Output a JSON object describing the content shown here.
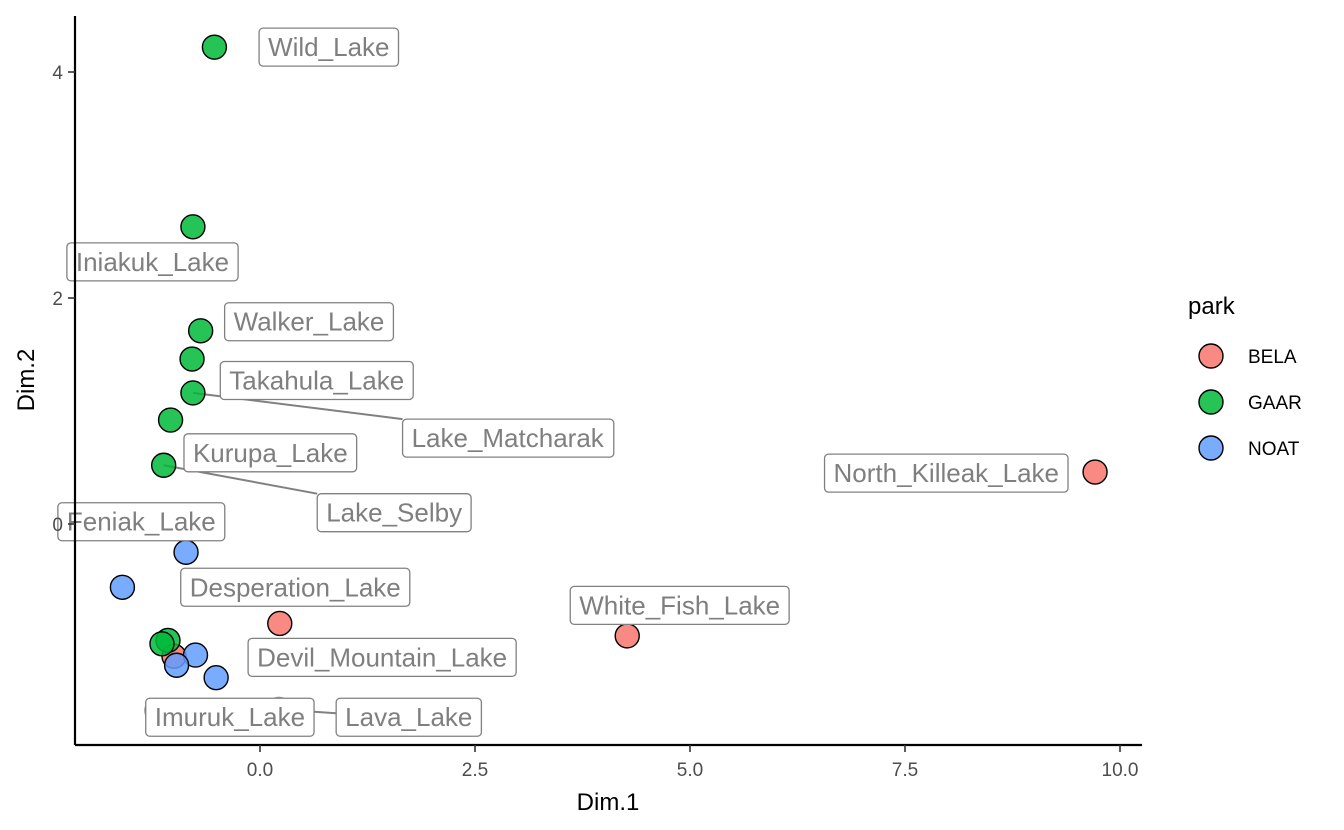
{
  "chart_data": {
    "type": "scatter",
    "title": "",
    "xlabel": "Dim.1",
    "ylabel": "Dim.2",
    "xlim": [
      -2.15,
      10.35
    ],
    "ylim": [
      -1.95,
      4.5
    ],
    "x_ticks": [
      0.0,
      2.5,
      5.0,
      7.5,
      10.0
    ],
    "x_tick_labels": [
      "0.0",
      "2.5",
      "5.0",
      "7.5",
      "10.0"
    ],
    "y_ticks": [
      0,
      2,
      4
    ],
    "y_tick_labels": [
      "0",
      "2",
      "4"
    ],
    "grid": false,
    "legend": {
      "title": "park",
      "position": "right",
      "entries": [
        {
          "name": "BELA",
          "color": "#F8766D"
        },
        {
          "name": "GAAR",
          "color": "#00BA38"
        },
        {
          "name": "NOAT",
          "color": "#619CFF"
        }
      ]
    },
    "points": [
      {
        "label": "Wild_Lake",
        "park": "GAAR",
        "x": -0.53,
        "y": 4.22
      },
      {
        "label": "",
        "park": "GAAR",
        "x": -0.78,
        "y": 2.63
      },
      {
        "label": "Walker_Lake",
        "park": "GAAR",
        "x": -0.69,
        "y": 1.71
      },
      {
        "label": "",
        "park": "GAAR",
        "x": -0.79,
        "y": 1.46
      },
      {
        "label": "Takahula_Lake",
        "park": "GAAR",
        "x": -0.78,
        "y": 1.16
      },
      {
        "label": "",
        "park": "GAAR",
        "x": -1.04,
        "y": 0.92
      },
      {
        "label": "",
        "park": "GAAR",
        "x": -1.12,
        "y": 0.52
      },
      {
        "label": "",
        "park": "BELA",
        "x": 9.71,
        "y": 0.46
      },
      {
        "label": "",
        "park": "NOAT",
        "x": -0.86,
        "y": -0.25
      },
      {
        "label": "Desperation_Lake",
        "park": "NOAT",
        "x": -1.6,
        "y": -0.56
      },
      {
        "label": "",
        "park": "BELA",
        "x": 0.23,
        "y": -0.88
      },
      {
        "label": "",
        "park": "BELA",
        "x": 4.27,
        "y": -0.99
      },
      {
        "label": "",
        "park": "BELA",
        "x": -1.0,
        "y": -1.17
      },
      {
        "label": "",
        "park": "GAAR",
        "x": -1.07,
        "y": -1.03
      },
      {
        "label": "",
        "park": "GAAR",
        "x": -1.14,
        "y": -1.06
      },
      {
        "label": "",
        "park": "NOAT",
        "x": -0.75,
        "y": -1.16
      },
      {
        "label": "",
        "park": "NOAT",
        "x": -0.97,
        "y": -1.25
      },
      {
        "label": "",
        "park": "NOAT",
        "x": -0.51,
        "y": -1.36
      },
      {
        "label": "",
        "park": "BELA",
        "x": -1.2,
        "y": -1.65,
        "faded": true
      },
      {
        "label": "",
        "park": "BELA",
        "x": 0.22,
        "y": -1.64,
        "faded": true
      }
    ],
    "labels": [
      {
        "text": "Wild_Lake",
        "x": 0.8,
        "y": 4.22,
        "anchor": "middle"
      },
      {
        "text": "Iniakuk_Lake",
        "x": -1.25,
        "y": 2.32,
        "anchor": "middle"
      },
      {
        "text": "Walker_Lake",
        "x": 0.57,
        "y": 1.79,
        "anchor": "middle"
      },
      {
        "text": "Takahula_Lake",
        "x": 0.66,
        "y": 1.27,
        "anchor": "middle"
      },
      {
        "text": "Lake_Matcharak",
        "x": 2.88,
        "y": 0.76,
        "anchor": "middle",
        "leader_to": {
          "x": -0.78,
          "y": 1.16
        }
      },
      {
        "text": "Kurupa_Lake",
        "x": 0.12,
        "y": 0.63,
        "anchor": "middle"
      },
      {
        "text": "Lake_Selby",
        "x": 1.56,
        "y": 0.1,
        "anchor": "middle",
        "leader_to": {
          "x": -1.12,
          "y": 0.52
        }
      },
      {
        "text": "North_Killeak_Lake",
        "x": 7.98,
        "y": 0.45,
        "anchor": "middle"
      },
      {
        "text": "Feniak_Lake",
        "x": -1.38,
        "y": 0.02,
        "anchor": "middle"
      },
      {
        "text": "Desperation_Lake",
        "x": 0.41,
        "y": -0.56,
        "anchor": "middle"
      },
      {
        "text": "White_Fish_Lake",
        "x": 4.88,
        "y": -0.72,
        "anchor": "middle"
      },
      {
        "text": "Devil_Mountain_Lake",
        "x": 1.42,
        "y": -1.18,
        "anchor": "middle"
      },
      {
        "text": "Imuruk_Lake",
        "x": -0.35,
        "y": -1.71,
        "anchor": "middle"
      },
      {
        "text": "Lava_Lake",
        "x": 1.73,
        "y": -1.71,
        "anchor": "middle",
        "leader_to": {
          "x": 0.22,
          "y": -1.64
        }
      }
    ]
  }
}
